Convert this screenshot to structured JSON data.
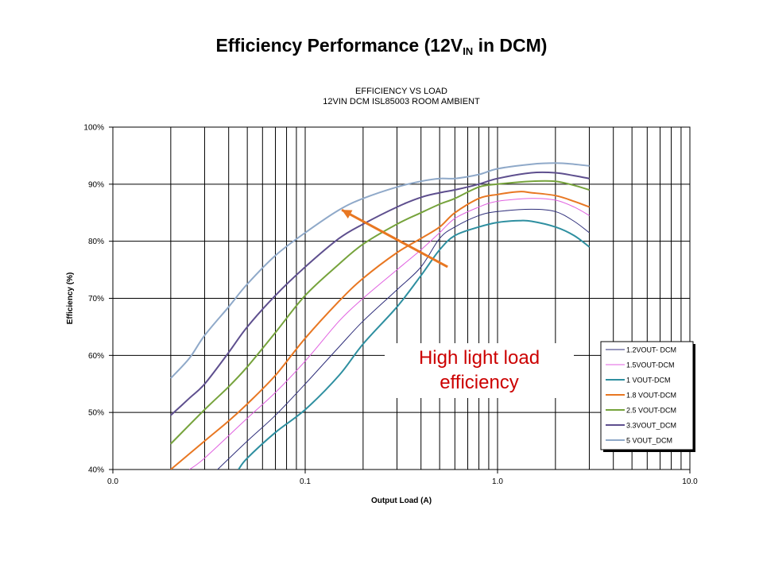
{
  "slide": {
    "title_main": "Efficiency Performance (12V",
    "title_sub": "IN",
    "title_end": " in DCM)"
  },
  "callout": {
    "line1": "High light load",
    "line2": "efficiency",
    "color": "#cc0000",
    "arrow_color": "#e87722",
    "arrow_from": [
      0.55,
      75.5
    ],
    "arrow_to": [
      0.155,
      85.5
    ]
  },
  "chart_data": {
    "type": "line",
    "title": "EFFICIENCY VS LOAD",
    "subtitle": "12VIN DCM ISL85003  ROOM AMBIENT",
    "xlabel": "Output Load (A)",
    "ylabel": "Efficiency (%)",
    "x_scale": "log",
    "xlim": [
      0.01,
      10
    ],
    "ylim": [
      40,
      100
    ],
    "x_ticks": [
      0.01,
      0.1,
      1,
      10
    ],
    "x_tick_labels": [
      "0.0",
      "0.1",
      "1.0",
      "10.0"
    ],
    "y_ticks": [
      40,
      50,
      60,
      70,
      80,
      90,
      100
    ],
    "y_tick_labels": [
      "40%",
      "50%",
      "60%",
      "70%",
      "80%",
      "90%",
      "100%"
    ],
    "grid": true,
    "legend_position": "bottom-right",
    "series": [
      {
        "name": "1.2VOUT- DCM",
        "color": "#2e2e7a",
        "width": 1,
        "x": [
          0.035,
          0.05,
          0.07,
          0.1,
          0.15,
          0.2,
          0.3,
          0.4,
          0.5,
          0.6,
          0.8,
          1.0,
          1.5,
          2.0,
          2.5,
          3.0
        ],
        "y": [
          40,
          45,
          49.5,
          55,
          61.5,
          66,
          71.5,
          75.5,
          80.5,
          82.5,
          84.5,
          85.2,
          85.6,
          85.2,
          83.5,
          81.5
        ]
      },
      {
        "name": "1.5VOUT-DCM",
        "color": "#e060e0",
        "width": 1,
        "x": [
          0.025,
          0.03,
          0.05,
          0.07,
          0.1,
          0.15,
          0.2,
          0.3,
          0.4,
          0.5,
          0.6,
          0.8,
          1.0,
          1.5,
          2.0,
          2.5,
          3.0
        ],
        "y": [
          40,
          42,
          49,
          53.5,
          59,
          66,
          70,
          75,
          78.5,
          81.5,
          84,
          86,
          87,
          87.5,
          87.2,
          86,
          84.5
        ]
      },
      {
        "name": "1 VOUT-DCM",
        "color": "#2e8fa0",
        "width": 2,
        "x": [
          0.045,
          0.05,
          0.07,
          0.1,
          0.15,
          0.2,
          0.3,
          0.4,
          0.5,
          0.6,
          0.8,
          1.0,
          1.3,
          1.5,
          2.0,
          2.5,
          3.0
        ],
        "y": [
          40,
          42,
          46.5,
          50.5,
          56.5,
          62,
          68.5,
          74,
          78.5,
          81,
          82.5,
          83.3,
          83.6,
          83.5,
          82.5,
          81,
          79
        ]
      },
      {
        "name": "1.8 VOUT-DCM",
        "color": "#e87722",
        "width": 2,
        "x": [
          0.02,
          0.03,
          0.04,
          0.05,
          0.07,
          0.1,
          0.15,
          0.2,
          0.3,
          0.4,
          0.5,
          0.6,
          0.8,
          1.0,
          1.3,
          1.5,
          2.0,
          2.5,
          3.0
        ],
        "y": [
          40,
          45,
          48.5,
          51.5,
          56.5,
          63,
          69.5,
          73.5,
          78,
          80.5,
          82.5,
          85,
          87.5,
          88.2,
          88.7,
          88.5,
          88,
          87,
          86
        ]
      },
      {
        "name": "2.5 VOUT-DCM",
        "color": "#76a33c",
        "width": 2,
        "x": [
          0.02,
          0.03,
          0.04,
          0.05,
          0.07,
          0.1,
          0.15,
          0.2,
          0.3,
          0.4,
          0.5,
          0.6,
          0.8,
          1.0,
          1.5,
          2.0,
          2.5,
          3.0
        ],
        "y": [
          44.5,
          50.5,
          54.5,
          58,
          64,
          70.5,
          76,
          79.5,
          83,
          85,
          86.5,
          87.5,
          89.5,
          90,
          90.5,
          90.5,
          89.8,
          89
        ]
      },
      {
        "name": "3.3VOUT_DCM",
        "color": "#5e4f8e",
        "width": 2,
        "x": [
          0.02,
          0.025,
          0.03,
          0.04,
          0.05,
          0.07,
          0.1,
          0.15,
          0.2,
          0.3,
          0.4,
          0.5,
          0.6,
          0.8,
          1.0,
          1.5,
          2.0,
          2.5,
          3.0
        ],
        "y": [
          49.5,
          52.5,
          55,
          60.5,
          65,
          70.5,
          75.5,
          80.5,
          83,
          86,
          87.7,
          88.5,
          89,
          90,
          91,
          92,
          92,
          91.5,
          91
        ]
      },
      {
        "name": "5 VOUT_DCM",
        "color": "#8fa9c9",
        "width": 2,
        "x": [
          0.02,
          0.025,
          0.03,
          0.04,
          0.05,
          0.07,
          0.1,
          0.15,
          0.2,
          0.3,
          0.4,
          0.5,
          0.6,
          0.8,
          1.0,
          1.5,
          2.0,
          2.5,
          3.0
        ],
        "y": [
          56,
          59.5,
          63.5,
          68.5,
          72.5,
          77.5,
          81.5,
          85.5,
          87.5,
          89.5,
          90.5,
          91,
          91,
          91.7,
          92.7,
          93.5,
          93.7,
          93.5,
          93.2
        ]
      }
    ]
  }
}
